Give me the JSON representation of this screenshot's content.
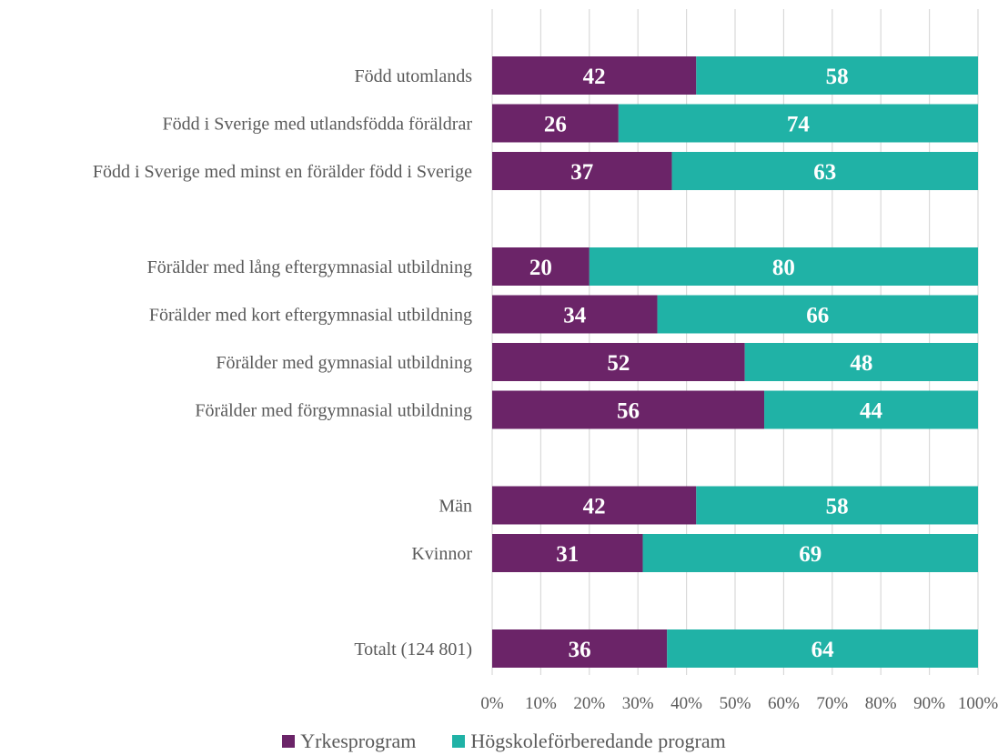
{
  "chart_data": {
    "type": "bar",
    "orientation": "horizontal",
    "stacked": true,
    "percent_stacked": true,
    "categories": [
      "Född utomlands",
      "Född i Sverige med utlandsfödda föräldrar",
      "Född i Sverige med minst en förälder född i Sverige",
      "",
      "Förälder med lång eftergymnasial utbildning",
      "Förälder med kort eftergymnasial utbildning",
      "Förälder med gymnasial utbildning",
      "Förälder med förgymnasial utbildning",
      "",
      "Män",
      "Kvinnor",
      "",
      "Totalt (124 801)"
    ],
    "series": [
      {
        "name": "Yrkesprogram",
        "color": "#6B2468",
        "values": [
          42,
          26,
          37,
          null,
          20,
          34,
          52,
          56,
          null,
          42,
          31,
          null,
          36
        ]
      },
      {
        "name": "Högskoleförberedande program",
        "color": "#20B2A6",
        "values": [
          58,
          74,
          63,
          null,
          80,
          66,
          48,
          44,
          null,
          58,
          69,
          null,
          64
        ]
      }
    ],
    "x_ticks": [
      "0%",
      "10%",
      "20%",
      "30%",
      "40%",
      "50%",
      "60%",
      "70%",
      "80%",
      "90%",
      "100%"
    ],
    "xlim": [
      0,
      100
    ],
    "grid": true,
    "legend_position": "bottom",
    "title": "",
    "xlabel": "",
    "ylabel": ""
  }
}
